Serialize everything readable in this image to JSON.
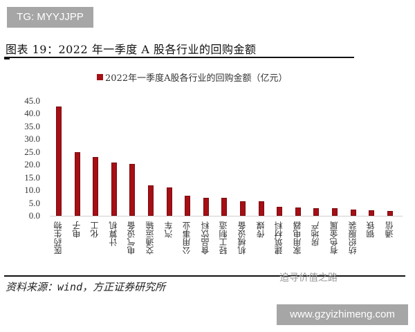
{
  "watermark_top": "TG: MYYJJPP",
  "figure_title": "图表 19：2022 年一季度 A 股各行业的回购金额",
  "source": "资料来源：wind，方正证券研究所",
  "watermark_wechat": "追寻价值之路",
  "watermark_url": "www.gzyizhimeng.com",
  "chart_data": {
    "type": "bar",
    "title": "图表 19：2022 年一季度 A 股各行业的回购金额",
    "legend": [
      "2022年一季度A股各行业的回购金额（亿元）"
    ],
    "legend_position": "top",
    "xlabel": "",
    "ylabel": "",
    "ylim": [
      0,
      45
    ],
    "yticks": [
      "0.0",
      "5.0",
      "10.0",
      "15.0",
      "20.0",
      "25.0",
      "30.0",
      "35.0",
      "40.0",
      "45.0"
    ],
    "grid": false,
    "color": "#a50f15",
    "categories": [
      "医药生物",
      "电子",
      "化工",
      "计算机",
      "电气设备",
      "交通运输",
      "汽车",
      "公用事业",
      "食品饮料",
      "轻工制造",
      "机械设备",
      "传媒",
      "建筑材料",
      "家用电器",
      "房地产",
      "有色金属",
      "纺织服装",
      "钢铁",
      "通信"
    ],
    "series": [
      {
        "name": "2022年一季度A股各行业的回购金额（亿元）",
        "values": [
          42.7,
          25.0,
          23.0,
          21.0,
          20.2,
          12.0,
          11.0,
          7.8,
          7.0,
          7.0,
          5.8,
          5.7,
          3.5,
          3.3,
          3.1,
          3.0,
          2.4,
          2.2,
          2.0
        ]
      }
    ]
  }
}
